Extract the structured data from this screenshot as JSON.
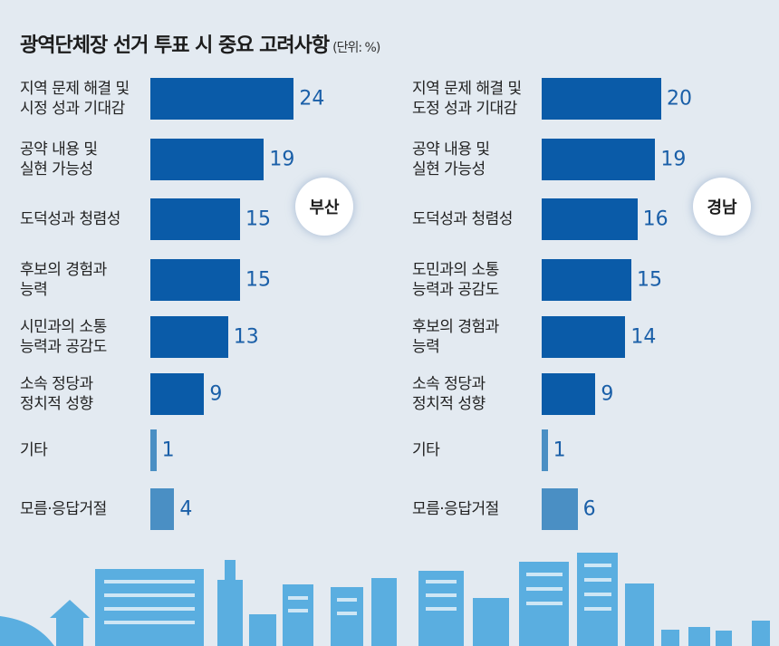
{
  "header": {
    "title": "광역단체장 선거 투표 시 중요 고려사항",
    "unit": "(단위: %)"
  },
  "chart_data": [
    {
      "type": "bar",
      "orientation": "horizontal",
      "label": "부산",
      "categories": [
        "지역 문제 해결 및\n시정 성과 기대감",
        "공약 내용 및\n실현 가능성",
        "도덕성과 청렴성",
        "후보의 경험과\n능력",
        "시민과의 소통\n능력과 공감도",
        "소속 정당과\n정치적 성향",
        "기타",
        "모름·응답거절"
      ],
      "values": [
        24,
        19,
        15,
        15,
        13,
        9,
        1,
        4
      ],
      "colors": [
        "#0a5ba8",
        "#0a5ba8",
        "#0a5ba8",
        "#0a5ba8",
        "#0a5ba8",
        "#0a5ba8",
        "#4a8fc4",
        "#4a8fc4"
      ]
    },
    {
      "type": "bar",
      "orientation": "horizontal",
      "label": "경남",
      "categories": [
        "지역 문제 해결 및\n도정 성과 기대감",
        "공약 내용 및\n실현 가능성",
        "도덕성과 청렴성",
        "도민과의 소통\n능력과 공감도",
        "후보의 경험과\n능력",
        "소속 정당과\n정치적 성향",
        "기타",
        "모름·응답거절"
      ],
      "values": [
        20,
        19,
        16,
        15,
        14,
        9,
        1,
        6
      ],
      "colors": [
        "#0a5ba8",
        "#0a5ba8",
        "#0a5ba8",
        "#0a5ba8",
        "#0a5ba8",
        "#0a5ba8",
        "#4a8fc4",
        "#4a8fc4"
      ]
    }
  ]
}
